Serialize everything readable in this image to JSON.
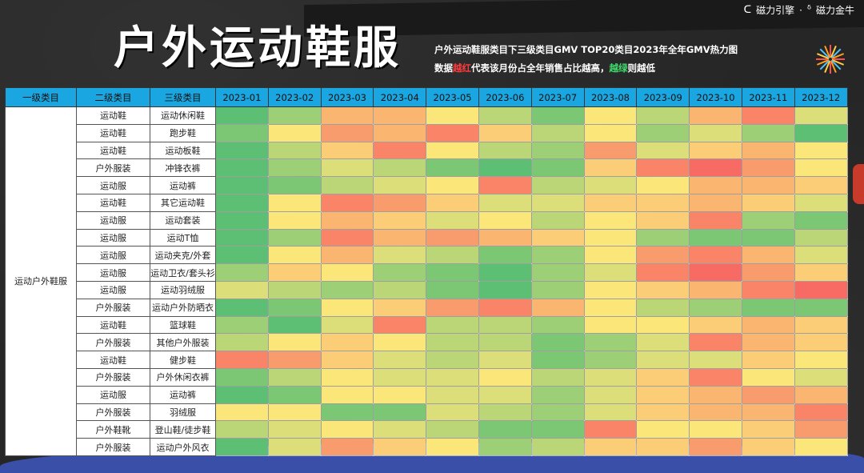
{
  "brand": {
    "left": "磁力引擎",
    "sep": "·",
    "right": "磁力金牛"
  },
  "header": {
    "title": "户外运动鞋服",
    "subtitle_line1": "户外运动鞋服类目下三级类目GMV TOP20类目2023年全年GMV热力图",
    "subtitle_line2_a": "数据",
    "subtitle_line2_red": "越红",
    "subtitle_line2_b": "代表该月份占全年销售占比越高，",
    "subtitle_line2_green": "越绿",
    "subtitle_line2_c": "则越低"
  },
  "colors": {
    "header_bg": "#1aa6e0",
    "low": "#5cbf73",
    "mid": "#fbe67a",
    "high": "#f86b64"
  },
  "chart_data": {
    "type": "heatmap",
    "column_headers": [
      "一级类目",
      "二级类目",
      "三级类目"
    ],
    "x": [
      "2023-01",
      "2023-02",
      "2023-03",
      "2023-04",
      "2023-05",
      "2023-06",
      "2023-07",
      "2023-08",
      "2023-09",
      "2023-10",
      "2023-11",
      "2023-12"
    ],
    "level1": "运动户外鞋服",
    "rows": [
      {
        "level2": "运动鞋",
        "level3": "运动休闲鞋",
        "values": [
          0,
          2,
          7,
          7,
          5,
          3,
          1,
          5,
          3,
          7,
          9,
          4
        ]
      },
      {
        "level2": "运动鞋",
        "level3": "跑步鞋",
        "values": [
          1,
          5,
          8,
          7,
          9,
          6,
          3,
          5,
          2,
          4,
          2,
          0
        ]
      },
      {
        "level2": "运动鞋",
        "level3": "运动板鞋",
        "values": [
          0,
          3,
          6,
          9,
          5,
          3,
          2,
          8,
          4,
          6,
          7,
          5
        ]
      },
      {
        "level2": "户外服装",
        "level3": "冲锋衣裤",
        "values": [
          0,
          2,
          4,
          3,
          1,
          0,
          1,
          6,
          9,
          10,
          8,
          5
        ]
      },
      {
        "level2": "运动服",
        "level3": "运动裤",
        "values": [
          0,
          1,
          3,
          4,
          5,
          9,
          3,
          4,
          5,
          7,
          7,
          6
        ]
      },
      {
        "level2": "运动鞋",
        "level3": "其它运动鞋",
        "values": [
          0,
          5,
          9,
          8,
          6,
          4,
          4,
          6,
          6,
          7,
          6,
          4
        ]
      },
      {
        "level2": "运动服",
        "level3": "运动套装",
        "values": [
          0,
          5,
          7,
          6,
          4,
          5,
          3,
          5,
          6,
          9,
          2,
          1
        ]
      },
      {
        "level2": "运动服",
        "level3": "运动T恤",
        "values": [
          0,
          2,
          9,
          7,
          8,
          7,
          6,
          5,
          2,
          1,
          1,
          3
        ]
      },
      {
        "level2": "运动服",
        "level3": "运动夹克/外套",
        "values": [
          0,
          5,
          7,
          4,
          3,
          1,
          2,
          5,
          8,
          9,
          7,
          4
        ]
      },
      {
        "level2": "运动服",
        "level3": "运动卫衣/套头衫",
        "values": [
          2,
          6,
          5,
          2,
          1,
          0,
          2,
          4,
          9,
          10,
          8,
          6
        ]
      },
      {
        "level2": "运动服",
        "level3": "运动羽绒服",
        "values": [
          4,
          3,
          2,
          3,
          1,
          0,
          2,
          5,
          6,
          7,
          9,
          10
        ]
      },
      {
        "level2": "户外服装",
        "level3": "运动户外防晒衣",
        "values": [
          0,
          1,
          5,
          6,
          8,
          9,
          7,
          5,
          3,
          2,
          1,
          1
        ]
      },
      {
        "level2": "运动鞋",
        "level3": "篮球鞋",
        "values": [
          2,
          0,
          4,
          9,
          3,
          3,
          2,
          5,
          5,
          6,
          7,
          6
        ]
      },
      {
        "level2": "户外服装",
        "level3": "其他户外服装",
        "values": [
          3,
          5,
          6,
          5,
          3,
          3,
          1,
          2,
          4,
          9,
          7,
          6
        ]
      },
      {
        "level2": "运动鞋",
        "level3": "健步鞋",
        "values": [
          9,
          8,
          6,
          4,
          3,
          4,
          1,
          2,
          4,
          4,
          6,
          5
        ]
      },
      {
        "level2": "户外服装",
        "level3": "户外休闲衣裤",
        "values": [
          1,
          3,
          5,
          4,
          4,
          5,
          3,
          4,
          6,
          9,
          5,
          4
        ]
      },
      {
        "level2": "运动服",
        "level3": "运动裤",
        "values": [
          0,
          1,
          5,
          5,
          4,
          4,
          2,
          4,
          6,
          7,
          8,
          7
        ]
      },
      {
        "level2": "户外服装",
        "level3": "羽绒服",
        "values": [
          5,
          5,
          1,
          1,
          4,
          3,
          2,
          4,
          6,
          7,
          7,
          9
        ]
      },
      {
        "level2": "户外鞋靴",
        "level3": "登山鞋/徒步鞋",
        "values": [
          3,
          4,
          5,
          4,
          3,
          1,
          1,
          9,
          5,
          5,
          6,
          8
        ]
      },
      {
        "level2": "户外服装",
        "level3": "运动户外风衣",
        "values": [
          0,
          4,
          8,
          6,
          5,
          2,
          3,
          6,
          6,
          8,
          6,
          5
        ]
      }
    ]
  }
}
